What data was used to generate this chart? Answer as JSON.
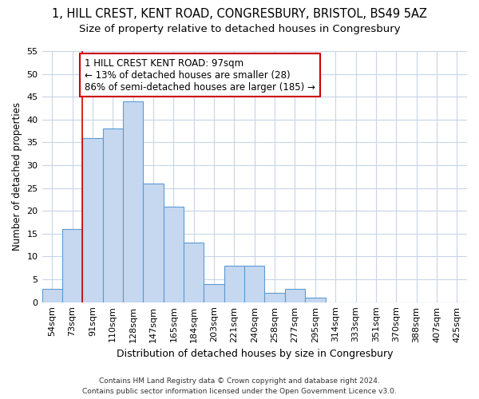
{
  "title1": "1, HILL CREST, KENT ROAD, CONGRESBURY, BRISTOL, BS49 5AZ",
  "title2": "Size of property relative to detached houses in Congresbury",
  "xlabel": "Distribution of detached houses by size in Congresbury",
  "ylabel": "Number of detached properties",
  "bar_labels": [
    "54sqm",
    "73sqm",
    "91sqm",
    "110sqm",
    "128sqm",
    "147sqm",
    "165sqm",
    "184sqm",
    "203sqm",
    "221sqm",
    "240sqm",
    "258sqm",
    "277sqm",
    "295sqm",
    "314sqm",
    "333sqm",
    "351sqm",
    "370sqm",
    "388sqm",
    "407sqm",
    "425sqm"
  ],
  "bar_values": [
    3,
    16,
    36,
    38,
    44,
    26,
    21,
    13,
    4,
    8,
    8,
    2,
    3,
    1,
    0,
    0,
    0,
    0,
    0,
    0,
    0
  ],
  "bar_color": "#c5d8f0",
  "bar_edge_color": "#5b9bd5",
  "vline_color": "#cc0000",
  "annotation_text": "1 HILL CREST KENT ROAD: 97sqm\n← 13% of detached houses are smaller (28)\n86% of semi-detached houses are larger (185) →",
  "annotation_box_color": "#ffffff",
  "annotation_box_edge_color": "#cc0000",
  "ylim": [
    0,
    55
  ],
  "yticks": [
    0,
    5,
    10,
    15,
    20,
    25,
    30,
    35,
    40,
    45,
    50,
    55
  ],
  "footer": "Contains HM Land Registry data © Crown copyright and database right 2024.\nContains public sector information licensed under the Open Government Licence v3.0.",
  "bg_color": "#ffffff",
  "grid_color": "#c8d4e8",
  "title1_fontsize": 10.5,
  "title2_fontsize": 9.5,
  "xlabel_fontsize": 9,
  "ylabel_fontsize": 8.5,
  "tick_fontsize": 8,
  "annotation_fontsize": 8.5,
  "footer_fontsize": 6.5
}
